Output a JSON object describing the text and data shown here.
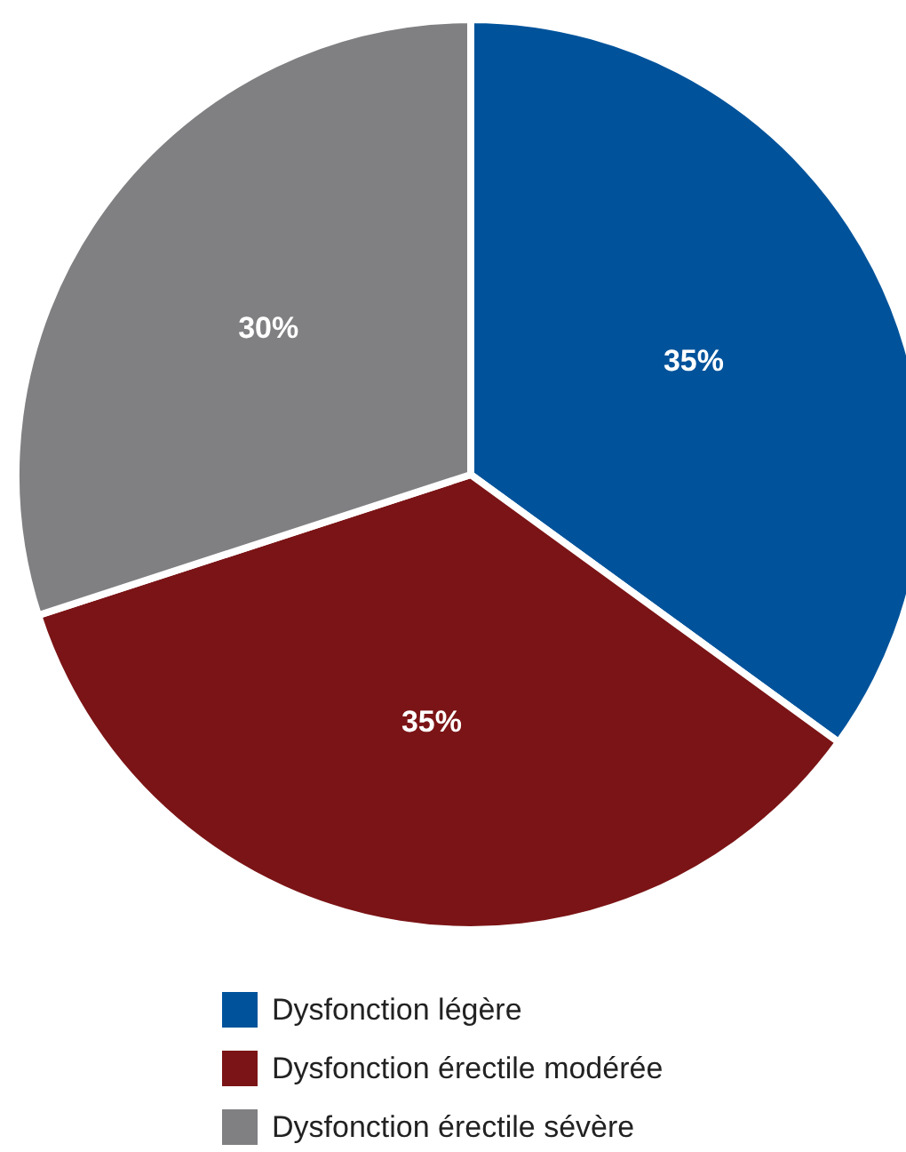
{
  "chart_data": {
    "type": "pie",
    "categories": [
      "Dysfonction légère",
      "Dysfonction érectile modérée",
      "Dysfonction érectile sévère"
    ],
    "values": [
      35,
      35,
      30
    ],
    "colors": [
      "#00539b",
      "#7b1416",
      "#808083"
    ],
    "value_labels": [
      "35%",
      "35%",
      "30%"
    ],
    "legend": "bottom"
  }
}
